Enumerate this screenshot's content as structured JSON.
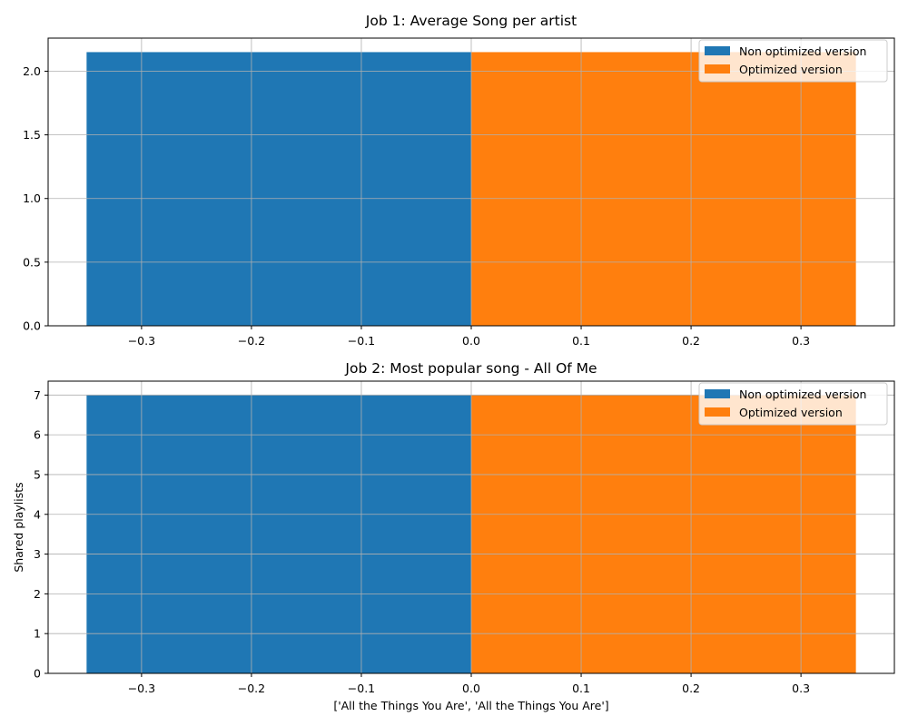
{
  "chart_data": [
    {
      "type": "bar",
      "title": "Job 1: Average Song per artist",
      "xlabel": "",
      "ylabel": "",
      "xlim": [
        -0.385,
        0.385
      ],
      "ylim": [
        0,
        2.26
      ],
      "xticks": [
        -0.3,
        -0.2,
        -0.1,
        0.0,
        0.1,
        0.2,
        0.3
      ],
      "xtick_labels": [
        "−0.3",
        "−0.2",
        "−0.1",
        "0.0",
        "0.1",
        "0.2",
        "0.3"
      ],
      "yticks": [
        0.0,
        0.5,
        1.0,
        1.5,
        2.0
      ],
      "ytick_labels": [
        "0.0",
        "0.5",
        "1.0",
        "1.5",
        "2.0"
      ],
      "grid": true,
      "legend_position": "top-right",
      "series": [
        {
          "name": "Non optimized version",
          "color": "#1f77b4",
          "x_start": -0.35,
          "x_end": 0.0,
          "value": 2.15
        },
        {
          "name": "Optimized version",
          "color": "#ff7f0e",
          "x_start": 0.0,
          "x_end": 0.35,
          "value": 2.15
        }
      ]
    },
    {
      "type": "bar",
      "title": "Job 2: Most popular song - All Of Me",
      "xlabel": "['All the Things You Are', 'All the Things You Are']",
      "ylabel": "Shared playlists",
      "xlim": [
        -0.385,
        0.385
      ],
      "ylim": [
        0,
        7.35
      ],
      "xticks": [
        -0.3,
        -0.2,
        -0.1,
        0.0,
        0.1,
        0.2,
        0.3
      ],
      "xtick_labels": [
        "−0.3",
        "−0.2",
        "−0.1",
        "0.0",
        "0.1",
        "0.2",
        "0.3"
      ],
      "yticks": [
        0,
        1,
        2,
        3,
        4,
        5,
        6,
        7
      ],
      "ytick_labels": [
        "0",
        "1",
        "2",
        "3",
        "4",
        "5",
        "6",
        "7"
      ],
      "grid": true,
      "legend_position": "top-right",
      "series": [
        {
          "name": "Non optimized version",
          "color": "#1f77b4",
          "x_start": -0.35,
          "x_end": 0.0,
          "value": 7
        },
        {
          "name": "Optimized version",
          "color": "#ff7f0e",
          "x_start": 0.0,
          "x_end": 0.35,
          "value": 7
        }
      ]
    }
  ]
}
